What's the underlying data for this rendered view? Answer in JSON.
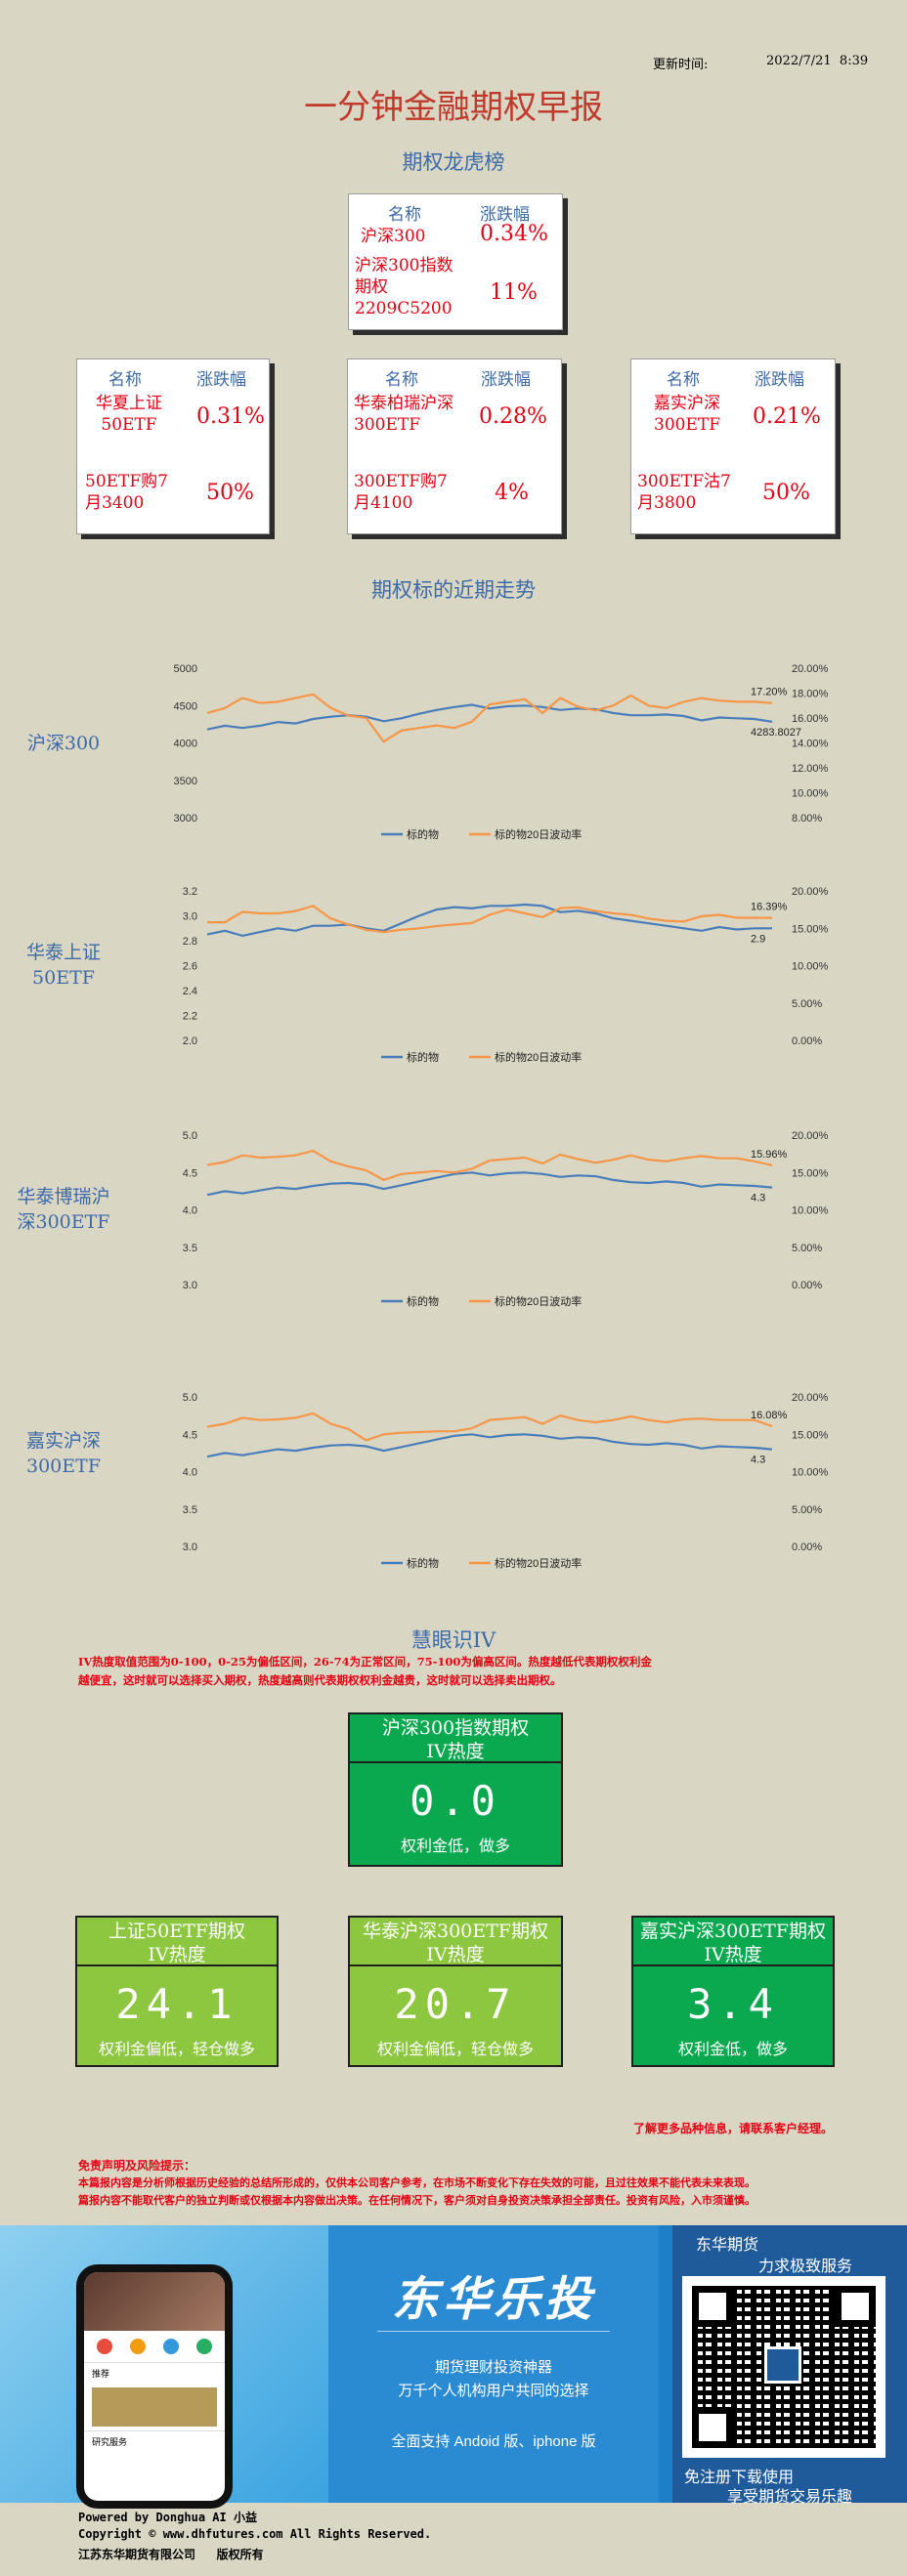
{
  "header": {
    "update_label": "更新时间:",
    "update_time": "2022/7/21  8:39"
  },
  "title": "一分钟金融期权早报",
  "leaderboard": {
    "heading": "期权龙虎榜",
    "col_name": "名称",
    "col_change": "涨跌幅",
    "main": {
      "underlying": "沪深300",
      "underlying_change": "0.34%",
      "option": "沪深300指数期权2209C5200",
      "option_change": "11%"
    },
    "cards": [
      {
        "underlying": "华夏上证50ETF",
        "underlying_change": "0.31%",
        "option": "50ETF购7月3400",
        "option_change": "50%"
      },
      {
        "underlying": "华泰柏瑞沪深300ETF",
        "underlying_change": "0.28%",
        "option": "300ETF购7月4100",
        "option_change": "4%"
      },
      {
        "underlying": "嘉实沪深300ETF",
        "underlying_change": "0.21%",
        "option": "300ETF沽7月3800",
        "option_change": "50%"
      }
    ]
  },
  "trend_heading": "期权标的近期走势",
  "colors": {
    "underlying_line": "#4a7ebb",
    "vol_line": "#f79646"
  },
  "chart_data": [
    {
      "type": "line",
      "label": "沪深300",
      "y_left": {
        "ticks": [
          "5000",
          "4500",
          "4000",
          "3500",
          "3000"
        ],
        "min": 3000,
        "max": 5000
      },
      "y_right": {
        "ticks": [
          "20.00%",
          "18.00%",
          "16.00%",
          "14.00%",
          "12.00%",
          "10.00%",
          "8.00%"
        ],
        "min": 8,
        "max": 20
      },
      "series": [
        {
          "name": "标的物",
          "values": [
            4180,
            4230,
            4200,
            4230,
            4280,
            4260,
            4320,
            4350,
            4370,
            4350,
            4290,
            4330,
            4390,
            4440,
            4480,
            4510,
            4460,
            4490,
            4500,
            4480,
            4440,
            4460,
            4450,
            4400,
            4370,
            4370,
            4380,
            4360,
            4300,
            4340,
            4330,
            4320,
            4283.8027
          ],
          "end_label": "4283.8027"
        },
        {
          "name": "标的物20日波动率",
          "values": [
            16.4,
            16.8,
            17.6,
            17.2,
            17.3,
            17.6,
            17.9,
            16.8,
            16.2,
            16.0,
            14.1,
            15.0,
            15.2,
            15.4,
            15.2,
            15.7,
            17.1,
            17.3,
            17.5,
            16.4,
            17.6,
            16.9,
            16.6,
            17.0,
            17.8,
            17.0,
            16.8,
            17.3,
            17.6,
            17.4,
            17.3,
            17.3,
            17.2
          ],
          "end_label": "17.20%"
        }
      ]
    },
    {
      "type": "line",
      "label": "华泰上证50ETF",
      "y_left": {
        "ticks": [
          "3.2",
          "3.0",
          "2.8",
          "2.6",
          "2.4",
          "2.2",
          "2.0"
        ],
        "min": 2.0,
        "max": 3.2
      },
      "y_right": {
        "ticks": [
          "20.00%",
          "15.00%",
          "10.00%",
          "5.00%",
          "0.00%"
        ],
        "min": 0,
        "max": 20
      },
      "series": [
        {
          "name": "标的物",
          "values": [
            2.85,
            2.88,
            2.84,
            2.87,
            2.9,
            2.88,
            2.92,
            2.92,
            2.93,
            2.9,
            2.88,
            2.94,
            3.0,
            3.05,
            3.07,
            3.06,
            3.08,
            3.08,
            3.09,
            3.08,
            3.03,
            3.04,
            3.02,
            2.98,
            2.96,
            2.94,
            2.92,
            2.9,
            2.88,
            2.91,
            2.89,
            2.9,
            2.9
          ],
          "end_label": "2.9"
        },
        {
          "name": "标的物20日波动率",
          "values": [
            15.8,
            15.8,
            17.2,
            17.0,
            17.0,
            17.3,
            18.0,
            16.3,
            15.5,
            14.8,
            14.5,
            14.8,
            15.0,
            15.3,
            15.5,
            15.7,
            16.8,
            17.5,
            17.0,
            16.5,
            17.7,
            17.8,
            17.3,
            17.0,
            16.8,
            16.3,
            16.0,
            15.9,
            16.6,
            16.8,
            16.4,
            16.4,
            16.39
          ],
          "end_label": "16.39%"
        }
      ]
    },
    {
      "type": "line",
      "label": "华泰博瑞沪深300ETF",
      "y_left": {
        "ticks": [
          "5.0",
          "4.5",
          "4.0",
          "3.5",
          "3.0"
        ],
        "min": 3.0,
        "max": 5.0
      },
      "y_right": {
        "ticks": [
          "20.00%",
          "15.00%",
          "10.00%",
          "5.00%",
          "0.00%"
        ],
        "min": 0,
        "max": 20
      },
      "series": [
        {
          "name": "标的物",
          "values": [
            4.2,
            4.25,
            4.22,
            4.26,
            4.3,
            4.28,
            4.32,
            4.35,
            4.36,
            4.34,
            4.28,
            4.33,
            4.38,
            4.43,
            4.48,
            4.5,
            4.46,
            4.49,
            4.5,
            4.48,
            4.44,
            4.46,
            4.45,
            4.4,
            4.37,
            4.36,
            4.38,
            4.36,
            4.31,
            4.34,
            4.33,
            4.32,
            4.3
          ],
          "end_label": "4.3"
        },
        {
          "name": "标的物20日波动率",
          "values": [
            16.0,
            16.4,
            17.3,
            17.0,
            17.1,
            17.3,
            17.9,
            16.5,
            15.8,
            15.3,
            14.0,
            14.8,
            15.0,
            15.2,
            15.0,
            15.5,
            16.6,
            16.8,
            17.0,
            16.2,
            17.4,
            16.8,
            16.3,
            16.7,
            17.3,
            16.7,
            16.5,
            16.9,
            17.2,
            16.9,
            16.9,
            16.5,
            15.96
          ],
          "end_label": "15.96%"
        }
      ]
    },
    {
      "type": "line",
      "label": "嘉实沪深300ETF",
      "y_left": {
        "ticks": [
          "5.0",
          "4.5",
          "4.0",
          "3.5",
          "3.0"
        ],
        "min": 3.0,
        "max": 5.0
      },
      "y_right": {
        "ticks": [
          "20.00%",
          "15.00%",
          "10.00%",
          "5.00%",
          "0.00%"
        ],
        "min": 0,
        "max": 20
      },
      "series": [
        {
          "name": "标的物",
          "values": [
            4.2,
            4.25,
            4.22,
            4.26,
            4.3,
            4.28,
            4.32,
            4.35,
            4.36,
            4.34,
            4.28,
            4.33,
            4.38,
            4.43,
            4.48,
            4.5,
            4.46,
            4.49,
            4.5,
            4.48,
            4.44,
            4.46,
            4.45,
            4.4,
            4.37,
            4.36,
            4.38,
            4.36,
            4.31,
            4.34,
            4.33,
            4.32,
            4.3
          ],
          "end_label": "4.3"
        },
        {
          "name": "标的物20日波动率",
          "values": [
            16.0,
            16.4,
            17.2,
            16.9,
            17.0,
            17.2,
            17.8,
            16.4,
            15.7,
            14.2,
            15.0,
            15.2,
            15.3,
            15.4,
            15.4,
            15.8,
            16.9,
            17.1,
            17.3,
            16.4,
            17.5,
            16.9,
            16.6,
            16.9,
            17.4,
            16.9,
            16.6,
            17.0,
            17.1,
            16.9,
            16.9,
            16.9,
            16.08
          ],
          "end_label": "16.08%"
        }
      ]
    }
  ],
  "iv": {
    "heading": "慧眼识IV",
    "desc_line1": "IV热度取值范围为0-100，0-25为偏低区间，26-74为正常区间，75-100为偏高区间。热度越低代表期权权利金",
    "desc_line2": "越便宜，这时就可以选择买入期权，热度越高则代表期权权利金越贵，这时就可以选择卖出期权。",
    "main": {
      "title1": "沪深300指数期权",
      "title2": "IV热度",
      "value": "0.0",
      "note": "权利金低，做多"
    },
    "cards": [
      {
        "title1": "上证50ETF期权",
        "title2": "IV热度",
        "value": "24.1",
        "note": "权利金偏低，轻仓做多"
      },
      {
        "title1": "华泰沪深300ETF期权",
        "title2": "IV热度",
        "value": "20.7",
        "note": "权利金偏低，轻仓做多"
      },
      {
        "title1": "嘉实沪深300ETF期权",
        "title2": "IV热度",
        "value": "3.4",
        "note": "权利金低，做多"
      }
    ]
  },
  "more_info": "了解更多品种信息，请联系客户经理。",
  "disclaimer": {
    "title": "免责声明及风险提示：",
    "line1": "本篇报内容是分析师根据历史经验的总结所形成的，仅供本公司客户参考，在市场不断变化下存在失效的可能，且过往效果不能代表未来表现。",
    "line2": "篇报内容不能取代客户的独立判断或仅根据本内容做出决策。在任何情况下，客户须对自身投资决策承担全部责任。投资有风险，入市须谨慎。"
  },
  "banner": {
    "brand": "东华乐投",
    "sub1": "期货理财投资神器",
    "sub2": "万千个人机构用户共同的选择",
    "sub3": "全面支持 Andoid 版、iphone 版",
    "qr_top1": "东华期货",
    "qr_top2": "力求极致服务",
    "qr_bottom1": "免注册下载使用",
    "qr_bottom2": "享受期货交易乐趣",
    "phone_menu1": "推荐",
    "phone_menu2": "研究服务"
  },
  "footer": {
    "line1": "Powered by Donghua AI 小益",
    "line2": "Copyright © www.dhfutures.com  All Rights Reserved.",
    "line3": "江苏东华期货有限公司   版权所有"
  }
}
